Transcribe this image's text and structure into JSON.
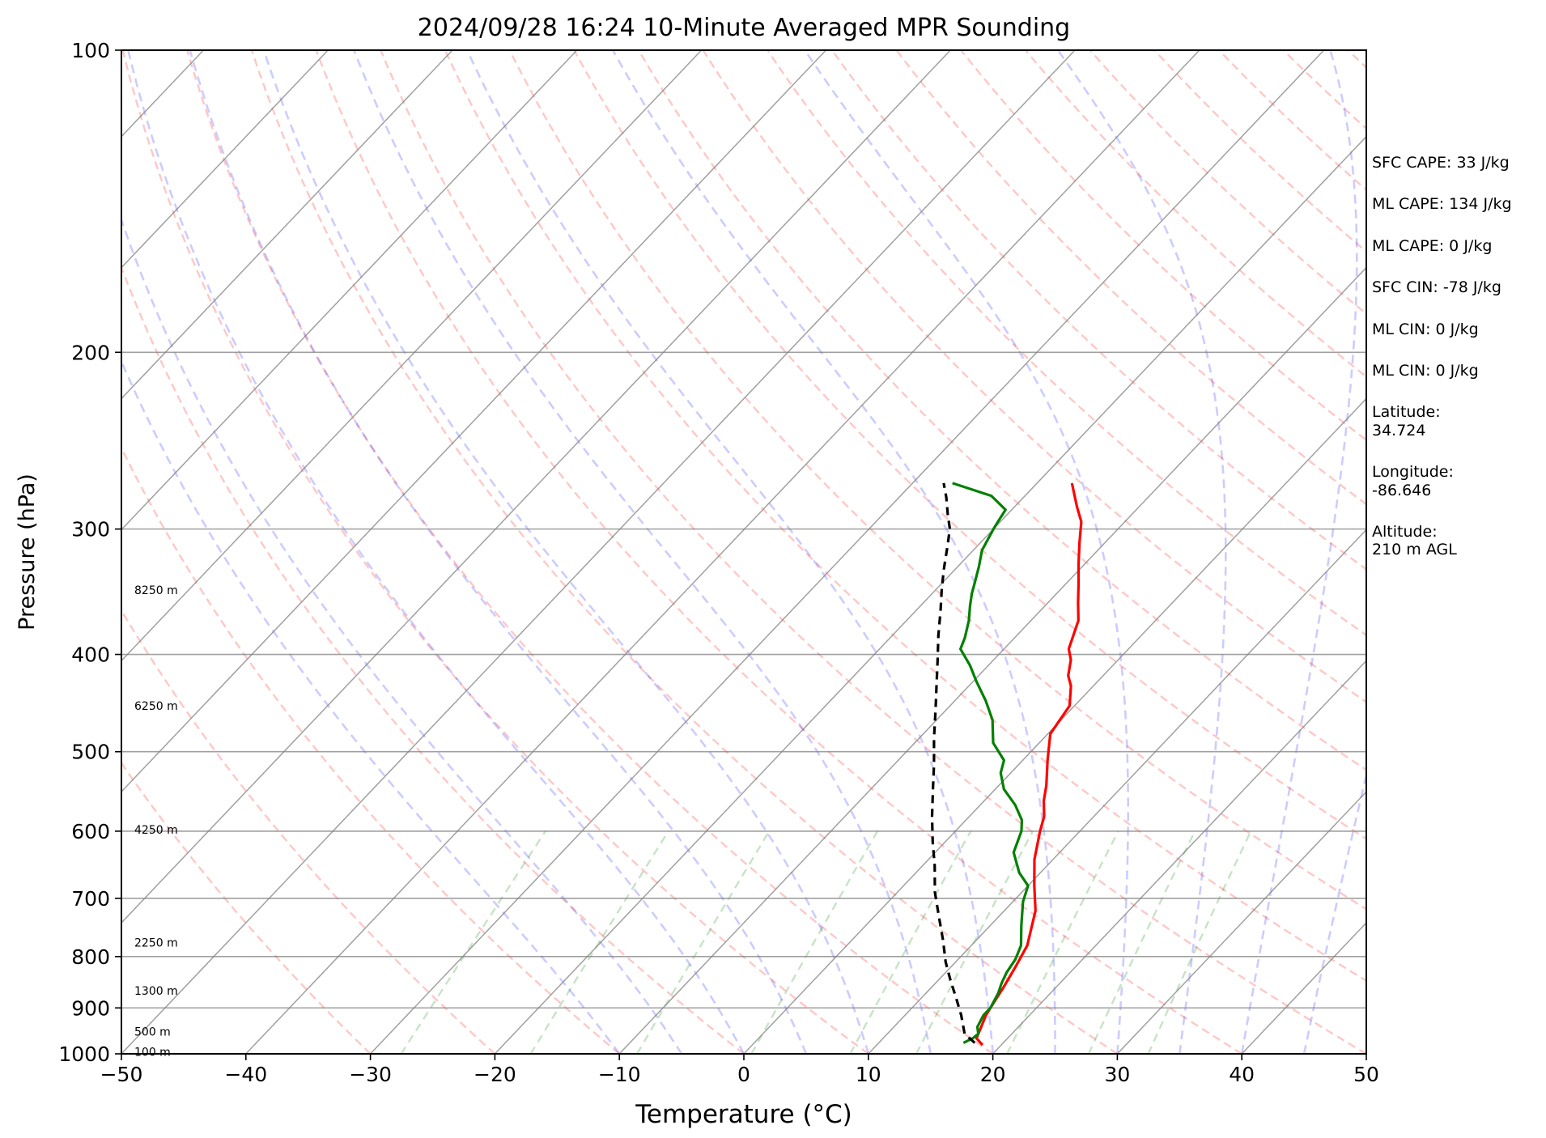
{
  "chart_data": {
    "type": "line",
    "title": "2024/09/28 16:24 10-Minute Averaged MPR Sounding",
    "xlabel": "Temperature (°C)",
    "ylabel": "Pressure (hPa)",
    "xlim": [
      -50,
      50
    ],
    "ylim": [
      1000,
      100
    ],
    "y_scale": "log",
    "skew": "skew-T log-P",
    "grid": true,
    "x_ticks": [
      -50,
      -40,
      -30,
      -20,
      -10,
      0,
      10,
      20,
      30,
      40,
      50
    ],
    "x_tick_labels": [
      "−50",
      "−40",
      "−30",
      "−20",
      "−10",
      "0",
      "10",
      "20",
      "30",
      "40",
      "50"
    ],
    "y_ticks": [
      100,
      200,
      300,
      400,
      500,
      600,
      700,
      800,
      900,
      1000
    ],
    "y_tick_labels": [
      "100",
      "200",
      "300",
      "400",
      "500",
      "600",
      "700",
      "800",
      "900",
      "1000"
    ],
    "height_labels": [
      {
        "pressure": 995,
        "text": "100 m"
      },
      {
        "pressure": 950,
        "text": "500 m"
      },
      {
        "pressure": 865,
        "text": "1300 m"
      },
      {
        "pressure": 775,
        "text": "2250 m"
      },
      {
        "pressure": 598,
        "text": "4250 m"
      },
      {
        "pressure": 450,
        "text": "6250 m"
      },
      {
        "pressure": 345,
        "text": "8250 m"
      }
    ],
    "series": [
      {
        "color": "#ff0000",
        "style": "solid",
        "points": [
          [
            18.5,
            980
          ],
          [
            17.5,
            965
          ],
          [
            16.5,
            915
          ],
          [
            16.3,
            900
          ],
          [
            15.8,
            860
          ],
          [
            15.2,
            820
          ],
          [
            14.5,
            780
          ],
          [
            12.5,
            720
          ],
          [
            10.5,
            680
          ],
          [
            8.5,
            640
          ],
          [
            6.8,
            600
          ],
          [
            6.0,
            580
          ],
          [
            4.8,
            560
          ],
          [
            3.8,
            540
          ],
          [
            2.0,
            510
          ],
          [
            0.2,
            480
          ],
          [
            -0.4,
            450
          ],
          [
            -1.8,
            430
          ],
          [
            -2.8,
            420
          ],
          [
            -3.8,
            405
          ],
          [
            -4.8,
            395
          ],
          [
            -6.2,
            370
          ],
          [
            -7.6,
            355
          ],
          [
            -9.0,
            340
          ],
          [
            -10.5,
            325
          ],
          [
            -12.0,
            310
          ],
          [
            -13.5,
            295
          ],
          [
            -15.0,
            285
          ],
          [
            -17.2,
            270
          ]
        ]
      },
      {
        "color": "#008000",
        "style": "solid",
        "points": [
          [
            16.8,
            975
          ],
          [
            17.2,
            965
          ],
          [
            17.3,
            955
          ],
          [
            16.7,
            940
          ],
          [
            16.3,
            915
          ],
          [
            16.3,
            900
          ],
          [
            15.8,
            870
          ],
          [
            15.3,
            850
          ],
          [
            14.9,
            830
          ],
          [
            14.6,
            805
          ],
          [
            14.0,
            780
          ],
          [
            12.5,
            745
          ],
          [
            10.8,
            705
          ],
          [
            10.0,
            680
          ],
          [
            8.3,
            660
          ],
          [
            6.3,
            630
          ],
          [
            5.3,
            600
          ],
          [
            4.5,
            585
          ],
          [
            2.8,
            565
          ],
          [
            0.7,
            545
          ],
          [
            -0.8,
            525
          ],
          [
            -1.5,
            510
          ],
          [
            -3.7,
            490
          ],
          [
            -5.5,
            465
          ],
          [
            -7.5,
            445
          ],
          [
            -9.8,
            425
          ],
          [
            -11.5,
            410
          ],
          [
            -13.5,
            395
          ],
          [
            -14.0,
            385
          ],
          [
            -15.0,
            370
          ],
          [
            -16.0,
            358
          ],
          [
            -16.8,
            348
          ],
          [
            -17.5,
            338
          ],
          [
            -18.3,
            327
          ],
          [
            -19.3,
            315
          ],
          [
            -20.0,
            300
          ],
          [
            -20.2,
            295
          ],
          [
            -20.5,
            287
          ],
          [
            -22.7,
            278
          ],
          [
            -26.8,
            270
          ]
        ]
      },
      {
        "color": "#000000",
        "style": "dashed",
        "points": [
          [
            17.7,
            975
          ],
          [
            16.2,
            955
          ],
          [
            14.5,
            915
          ],
          [
            12.8,
            880
          ],
          [
            11.0,
            845
          ],
          [
            9.2,
            810
          ],
          [
            7.3,
            770
          ],
          [
            5.2,
            730
          ],
          [
            3.0,
            690
          ],
          [
            1.0,
            650
          ],
          [
            -1.0,
            615
          ],
          [
            -3.0,
            580
          ],
          [
            -5.0,
            545
          ],
          [
            -6.8,
            515
          ],
          [
            -8.8,
            485
          ],
          [
            -10.8,
            455
          ],
          [
            -12.6,
            430
          ],
          [
            -14.5,
            405
          ],
          [
            -16.3,
            383
          ],
          [
            -18.0,
            362
          ],
          [
            -19.6,
            344
          ],
          [
            -21.0,
            328
          ],
          [
            -22.3,
            313
          ],
          [
            -23.5,
            300
          ],
          [
            -24.8,
            290
          ],
          [
            -26.2,
            279
          ],
          [
            -27.5,
            270
          ]
        ]
      }
    ]
  },
  "info": [
    "SFC CAPE: 33 J/kg",
    "ML CAPE: 134 J/kg",
    "ML CAPE: 0 J/kg",
    "SFC CIN: -78 J/kg",
    "ML CIN: 0 J/kg",
    "ML CIN: 0 J/kg",
    "Latitude:\n34.724",
    "Longitude:\n-86.646",
    "Altitude:\n210 m AGL"
  ]
}
